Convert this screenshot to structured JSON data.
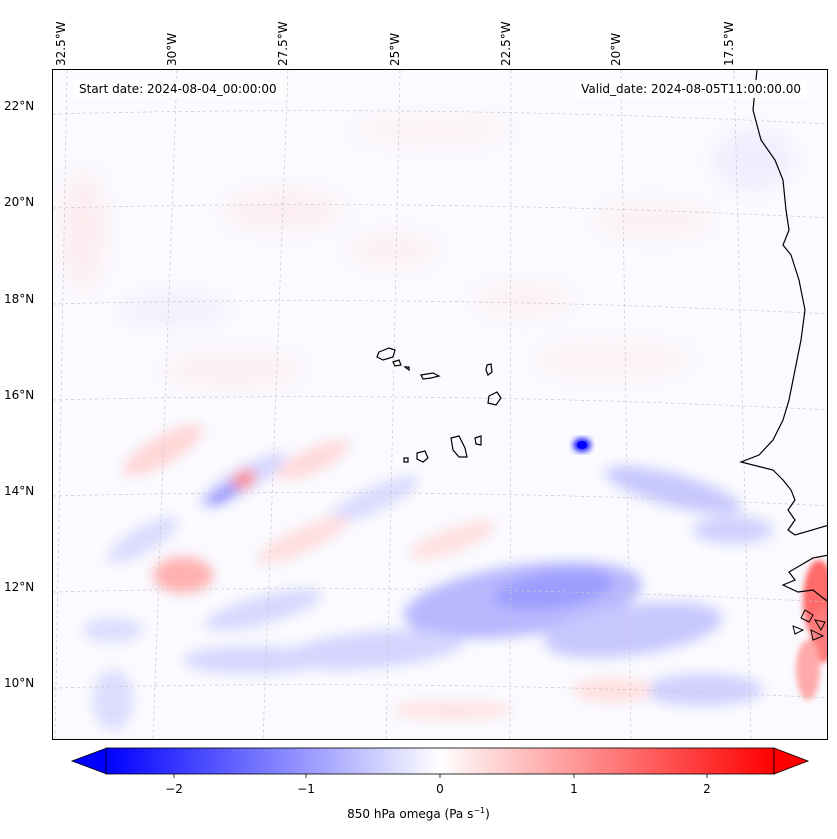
{
  "header": {
    "start_date": "Start date: 2024-08-04_00:00:00",
    "valid_date": "Valid_date: 2024-08-05T11:00:00.00"
  },
  "longitude_labels": [
    "32.5°W",
    "30°W",
    "27.5°W",
    "25°W",
    "22.5°W",
    "20°W",
    "17.5°W"
  ],
  "latitude_labels": [
    "22°N",
    "20°N",
    "18°N",
    "16°N",
    "14°N",
    "12°N",
    "10°N"
  ],
  "map": {
    "variable": "850 hPa omega",
    "projection": "curved lat/lon grid (conic-style)",
    "gridlines": true,
    "gridline_style": "dashed light grey",
    "features": [
      {
        "name": "Cape Verde Islands",
        "lon": -24.0,
        "lat": 15.8
      },
      {
        "name": "West African coast (Mauritania / Senegal / Guinea-Bissau)",
        "lon": -16.5,
        "lat": 14.0
      }
    ],
    "notable_values": [
      {
        "description": "strong negative omega (ascent)",
        "lon": -21.2,
        "lat": 15.0,
        "value": -2.5
      },
      {
        "description": "positive omega band near coast",
        "lon": -15.2,
        "lat": 11.8,
        "value": 1.5
      },
      {
        "description": "negative omega band",
        "lon": -23.0,
        "lat": 12.0,
        "value": -0.8
      }
    ]
  },
  "colorbar": {
    "ticks": [
      "−2",
      "−1",
      "0",
      "1",
      "2"
    ],
    "tick_values": [
      -2,
      -1,
      0,
      1,
      2
    ],
    "range": [
      -2.6,
      2.6
    ],
    "extend": "both",
    "colormap": "bwr",
    "label_main": "850 hPa omega (Pa s",
    "label_sup": "−1",
    "label_end": ")"
  },
  "colors": {
    "negative": "#0000ff",
    "neutral": "#ffffff",
    "positive": "#ff0000",
    "coastline": "#000000",
    "gridline": "#c8c8c8"
  }
}
